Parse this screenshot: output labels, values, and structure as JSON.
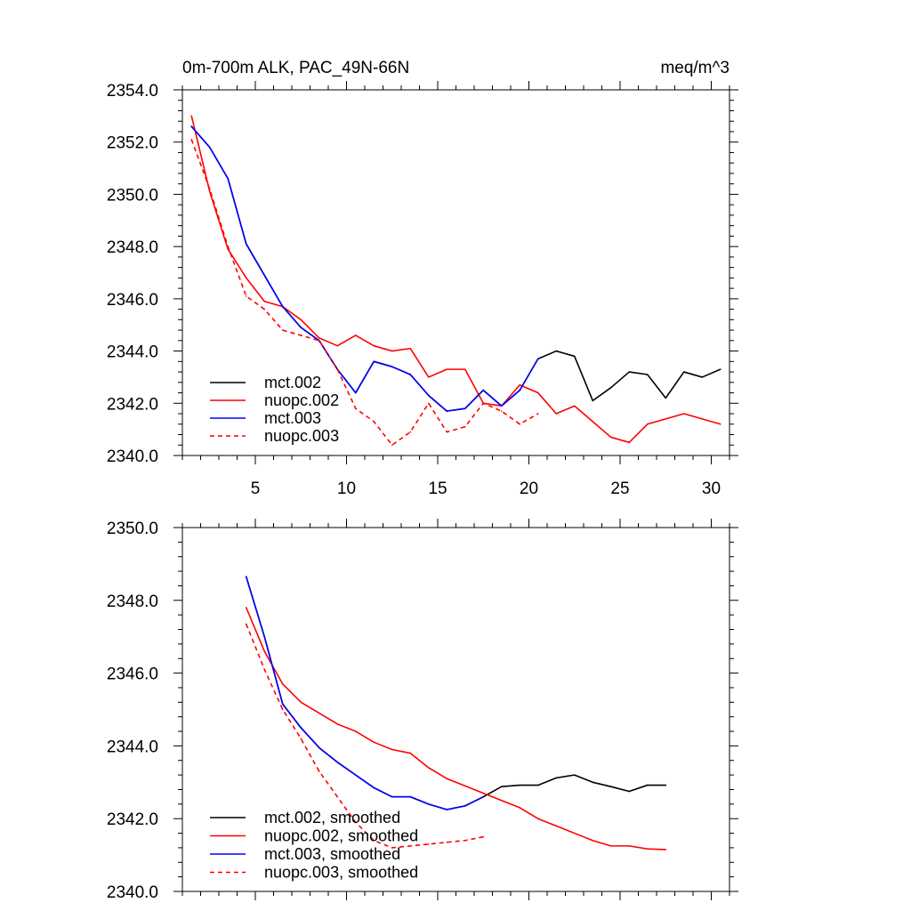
{
  "chart_data": [
    {
      "type": "line",
      "title_left": "0m-700m ALK, PAC_49N-66N",
      "title_right": "meq/m^3",
      "xlabel": "",
      "ylabel": "",
      "xlim": [
        1,
        31
      ],
      "ylim": [
        2340,
        2354
      ],
      "xticks": [
        5,
        10,
        15,
        20,
        25,
        30
      ],
      "xtick_labels": [
        "5",
        "10",
        "15",
        "20",
        "25",
        "30"
      ],
      "yticks": [
        2340,
        2342,
        2344,
        2346,
        2348,
        2350,
        2352,
        2354
      ],
      "ytick_labels": [
        "2340.0",
        "2342.0",
        "2344.0",
        "2346.0",
        "2348.0",
        "2350.0",
        "2352.0",
        "2354.0"
      ],
      "legend_position": "bottom-left",
      "series": [
        {
          "name": "mct.002",
          "color": "#000000",
          "dash": "solid",
          "x": [
            1.5,
            2.5,
            3.5,
            4.5,
            5.5,
            6.5,
            7.5,
            8.5,
            9.5,
            10.5,
            11.5,
            12.5,
            13.5,
            14.5,
            15.5,
            16.5,
            17.5,
            18.5,
            19.5,
            20.5,
            21.5,
            22.5,
            23.5,
            24.5,
            25.5,
            26.5,
            27.5,
            28.5,
            29.5,
            30.5
          ],
          "values": [
            2352.6,
            2351.8,
            2350.6,
            2348.1,
            2346.9,
            2345.7,
            2344.9,
            2344.4,
            2343.3,
            2342.4,
            2343.6,
            2343.4,
            2343.1,
            2342.3,
            2341.7,
            2341.8,
            2342.5,
            2341.9,
            2342.5,
            2343.7,
            2344.0,
            2343.8,
            2342.1,
            2342.6,
            2343.2,
            2343.1,
            2342.2,
            2343.2,
            2343.0,
            2343.3
          ]
        },
        {
          "name": "nuopc.002",
          "color": "#ff0000",
          "dash": "solid",
          "x": [
            1.5,
            2.5,
            3.5,
            4.5,
            5.5,
            6.5,
            7.5,
            8.5,
            9.5,
            10.5,
            11.5,
            12.5,
            13.5,
            14.5,
            15.5,
            16.5,
            17.5,
            18.5,
            19.5,
            20.5,
            21.5,
            22.5,
            23.5,
            24.5,
            25.5,
            26.5,
            27.5,
            28.5,
            29.5,
            30.5
          ],
          "values": [
            2353.0,
            2350.1,
            2347.9,
            2346.8,
            2345.9,
            2345.7,
            2345.2,
            2344.5,
            2344.2,
            2344.6,
            2344.2,
            2344.0,
            2344.1,
            2343.0,
            2343.3,
            2343.3,
            2342.0,
            2341.9,
            2342.7,
            2342.4,
            2341.6,
            2341.9,
            2341.3,
            2340.7,
            2340.5,
            2341.2,
            2341.4,
            2341.6,
            2341.4,
            2341.2
          ]
        },
        {
          "name": "mct.003",
          "color": "#0000ff",
          "dash": "solid",
          "x": [
            1.5,
            2.5,
            3.5,
            4.5,
            5.5,
            6.5,
            7.5,
            8.5,
            9.5,
            10.5,
            11.5,
            12.5,
            13.5,
            14.5,
            15.5,
            16.5,
            17.5,
            18.5,
            19.5,
            20.5
          ],
          "values": [
            2352.6,
            2351.8,
            2350.6,
            2348.1,
            2346.9,
            2345.7,
            2344.9,
            2344.4,
            2343.3,
            2342.4,
            2343.6,
            2343.4,
            2343.1,
            2342.3,
            2341.7,
            2341.8,
            2342.5,
            2341.9,
            2342.5,
            2343.7
          ]
        },
        {
          "name": "nuopc.003",
          "color": "#ff0000",
          "dash": "dashed",
          "x": [
            1.5,
            2.5,
            3.5,
            4.5,
            5.5,
            6.5,
            7.5,
            8.5,
            9.5,
            10.5,
            11.5,
            12.5,
            13.5,
            14.5,
            15.5,
            16.5,
            17.5,
            18.5,
            19.5,
            20.5
          ],
          "values": [
            2352.1,
            2350.2,
            2348.0,
            2346.1,
            2345.6,
            2344.8,
            2344.6,
            2344.4,
            2343.3,
            2341.8,
            2341.3,
            2340.4,
            2340.9,
            2342.0,
            2340.9,
            2341.1,
            2342.0,
            2341.7,
            2341.2,
            2341.6
          ]
        }
      ]
    },
    {
      "type": "line",
      "title_left": "",
      "title_right": "",
      "xlabel": "",
      "ylabel": "",
      "xlim": [
        1,
        31
      ],
      "ylim": [
        2340,
        2350
      ],
      "xticks": [
        5,
        10,
        15,
        20,
        25,
        30
      ],
      "yticks": [
        2340,
        2342,
        2344,
        2346,
        2348,
        2350
      ],
      "ytick_labels": [
        "2340.0",
        "2342.0",
        "2344.0",
        "2346.0",
        "2348.0",
        "2350.0"
      ],
      "legend_position": "bottom-left",
      "series": [
        {
          "name": "mct.002, smoothed",
          "color": "#000000",
          "dash": "solid",
          "x": [
            4.5,
            5.5,
            6.5,
            7.5,
            8.5,
            9.5,
            10.5,
            11.5,
            12.5,
            13.5,
            14.5,
            15.5,
            16.5,
            17.5,
            18.5,
            19.5,
            20.5,
            21.5,
            22.5,
            23.5,
            24.5,
            25.5,
            26.5,
            27.5
          ],
          "values": [
            2348.65,
            2347.0,
            2345.15,
            2344.5,
            2343.95,
            2343.55,
            2343.2,
            2342.85,
            2342.6,
            2342.6,
            2342.4,
            2342.25,
            2342.35,
            2342.6,
            2342.88,
            2342.92,
            2342.92,
            2343.12,
            2343.2,
            2343.0,
            2342.88,
            2342.75,
            2342.92,
            2342.92
          ]
        },
        {
          "name": "nuopc.002, smoothed",
          "color": "#ff0000",
          "dash": "solid",
          "x": [
            4.5,
            5.5,
            6.5,
            7.5,
            8.5,
            9.5,
            10.5,
            11.5,
            12.5,
            13.5,
            14.5,
            15.5,
            16.5,
            17.5,
            18.5,
            19.5,
            20.5,
            21.5,
            22.5,
            23.5,
            24.5,
            25.5,
            26.5,
            27.5
          ],
          "values": [
            2347.8,
            2346.6,
            2345.7,
            2345.2,
            2344.9,
            2344.6,
            2344.4,
            2344.1,
            2343.9,
            2343.8,
            2343.4,
            2343.1,
            2342.9,
            2342.7,
            2342.5,
            2342.3,
            2342.0,
            2341.8,
            2341.6,
            2341.4,
            2341.25,
            2341.25,
            2341.17,
            2341.15
          ]
        },
        {
          "name": "mct.003, smoothed",
          "color": "#0000ff",
          "dash": "solid",
          "x": [
            4.5,
            5.5,
            6.5,
            7.5,
            8.5,
            9.5,
            10.5,
            11.5,
            12.5,
            13.5,
            14.5,
            15.5,
            16.5,
            17.5
          ],
          "values": [
            2348.65,
            2347.0,
            2345.15,
            2344.5,
            2343.95,
            2343.55,
            2343.2,
            2342.85,
            2342.6,
            2342.6,
            2342.4,
            2342.25,
            2342.35,
            2342.6
          ]
        },
        {
          "name": "nuopc.003, smoothed",
          "color": "#ff0000",
          "dash": "dashed",
          "x": [
            4.5,
            5.5,
            6.5,
            7.5,
            8.5,
            9.5,
            10.5,
            11.5,
            12.5,
            13.5,
            14.5,
            15.5,
            16.5,
            17.5
          ],
          "values": [
            2347.35,
            2346.1,
            2345.0,
            2344.2,
            2343.3,
            2342.6,
            2341.9,
            2341.4,
            2341.2,
            2341.25,
            2341.3,
            2341.35,
            2341.4,
            2341.5
          ]
        }
      ]
    }
  ]
}
